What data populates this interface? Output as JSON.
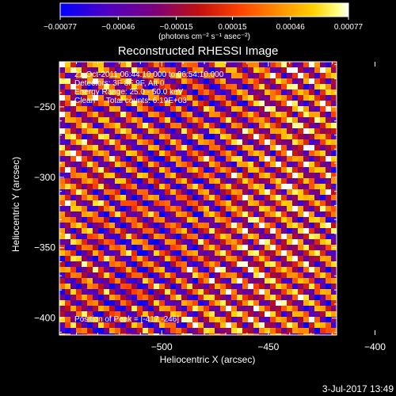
{
  "chart_data": {
    "type": "heatmap",
    "title": "Reconstructed RHESSI Image",
    "xlabel": "Heliocentric X (arcsec)",
    "ylabel": "Heliocentric Y (arcsec)",
    "xlim": [
      -548,
      -418
    ],
    "ylim": [
      -412,
      -218
    ],
    "x_ticks": [
      -500,
      -450,
      -400
    ],
    "y_ticks": [
      -250,
      -300,
      -350,
      -400
    ],
    "x_tick_labels": [
      "−500",
      "−450",
      "−400"
    ],
    "y_tick_labels": [
      "−250",
      "−300",
      "−350",
      "−400"
    ],
    "colorbar": {
      "min": -0.00077,
      "max": 0.00077,
      "ticks": [
        -0.00077,
        -0.00046,
        -0.00015,
        0.00015,
        0.00046,
        0.00077
      ],
      "tick_labels": [
        "−0.00077",
        "−0.00046",
        "−0.00015",
        "0.00015",
        "0.00046",
        "0.00077"
      ],
      "unit_label": "(photons cm⁻² s⁻¹ asec⁻²)"
    },
    "info_lines": [
      "21-Oct-2011 06:44:10.000 to 06:54:10.000",
      "Detectors: 3F 8F 9F, Att 0",
      "Energy Range: 25.0 - 50.0 keV",
      "Clean     Total counts: 6.19E+03"
    ],
    "peak_text": "Position of Peak = [-417,-246]",
    "pattern": {
      "description": "diagonal stripe modulation pattern",
      "stripe_direction": "upper-left to lower-right",
      "stripe_count": 20,
      "peak_position": [
        -417,
        -246
      ]
    }
  },
  "footer": {
    "timestamp": "3-Jul-2017 13:49"
  },
  "colors": {
    "background": "#000000",
    "text": "#ffffff",
    "colormap": [
      "#0000ff",
      "#4a00c8",
      "#7a0080",
      "#c01010",
      "#ff4000",
      "#ff9000",
      "#ffd000",
      "#ffff80",
      "#ffffff"
    ]
  }
}
